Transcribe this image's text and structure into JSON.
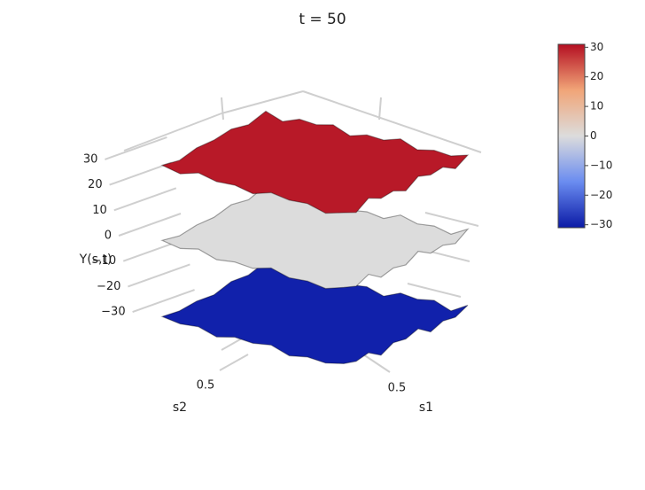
{
  "chart_data": {
    "type": "surface3d",
    "title": "t =  50",
    "xlabel": "s1",
    "ylabel": "s2",
    "zlabel": "Y(s,t)",
    "xticks": [
      0.5
    ],
    "yticks": [
      0.5
    ],
    "zticks": [
      {
        "value": 30,
        "label": "30"
      },
      {
        "value": 20,
        "label": "20"
      },
      {
        "value": 10,
        "label": "10"
      },
      {
        "value": 0,
        "label": "0"
      },
      {
        "value": -10,
        "label": "−10"
      },
      {
        "value": -20,
        "label": "−20"
      },
      {
        "value": -30,
        "label": "−30"
      }
    ],
    "surfaces": [
      {
        "level": 30
      },
      {
        "level": 0
      },
      {
        "level": -30
      }
    ],
    "colorscale": [
      "#0b1aa6",
      "#6a8cf0",
      "#dcdcdc",
      "#f1a578",
      "#b40f22"
    ],
    "clim": [
      -31,
      31
    ],
    "colorbar_ticks": [
      {
        "value": 30,
        "label": "30"
      },
      {
        "value": 20,
        "label": "20"
      },
      {
        "value": 10,
        "label": "10"
      },
      {
        "value": 0,
        "label": "0"
      },
      {
        "value": -10,
        "label": "−10"
      },
      {
        "value": -20,
        "label": "−20"
      },
      {
        "value": -30,
        "label": "−30"
      }
    ]
  }
}
